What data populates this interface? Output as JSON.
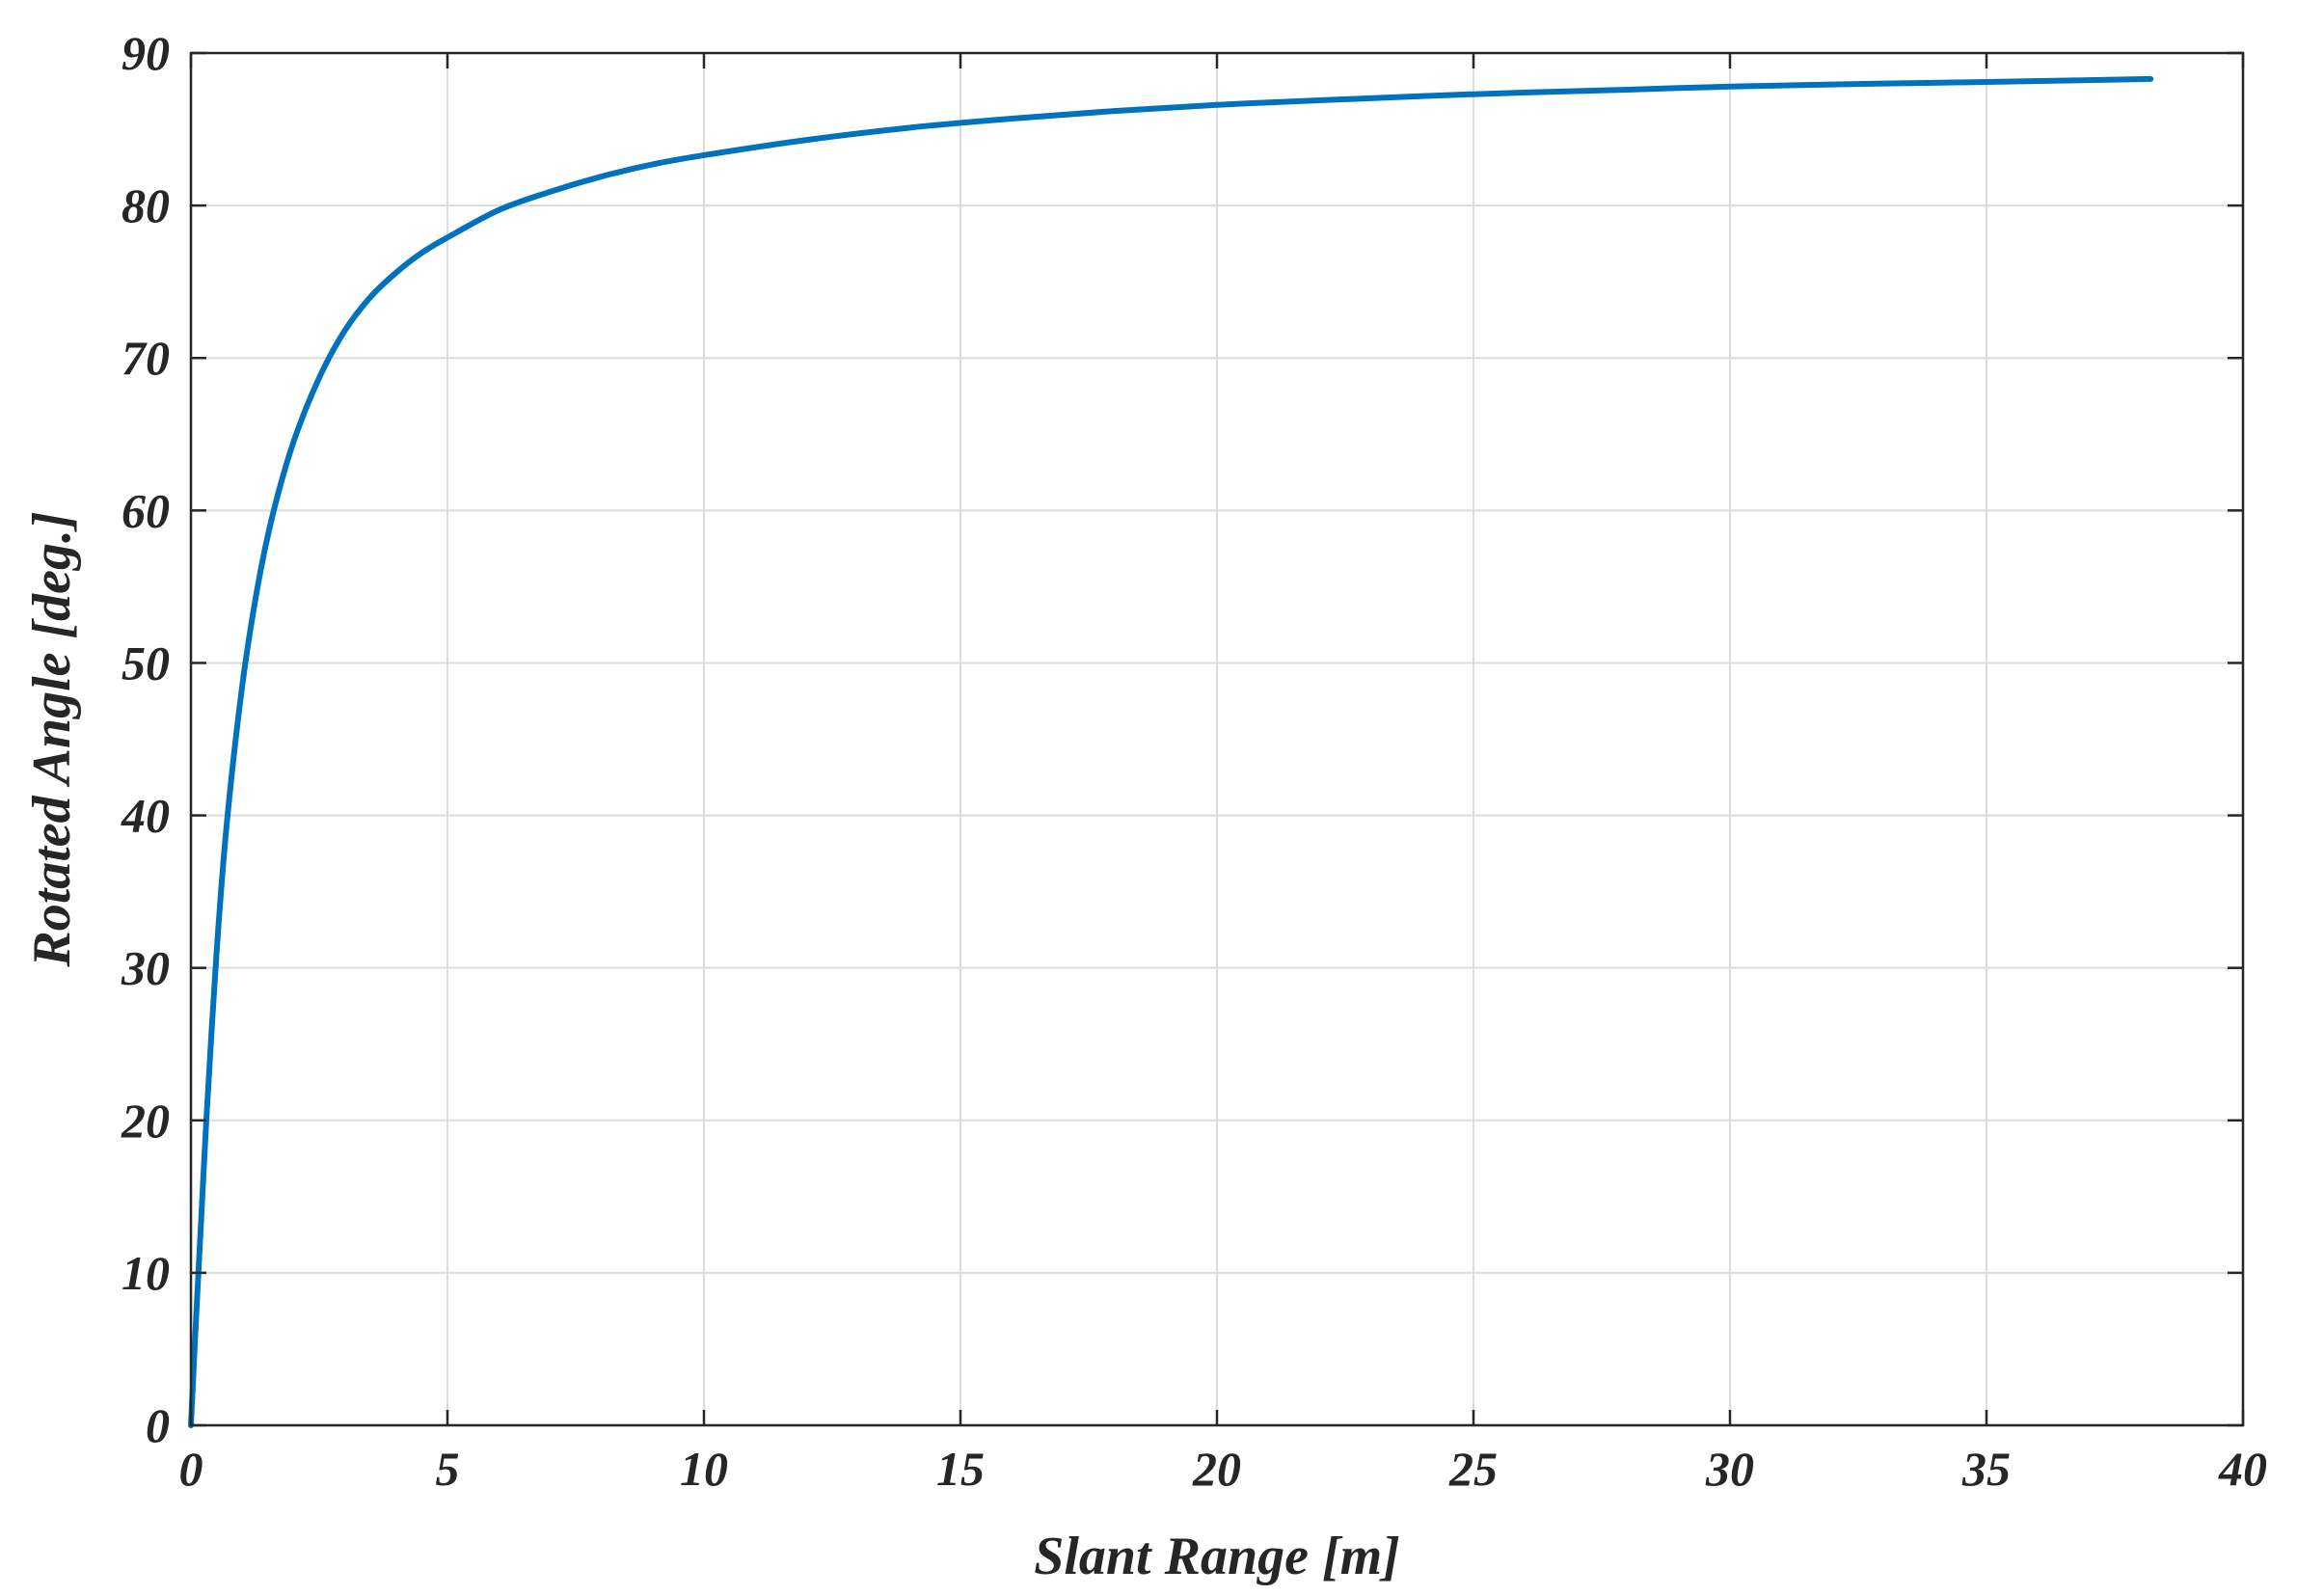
{
  "chart_data": {
    "type": "line",
    "xlabel": "Slant Range [m]",
    "ylabel": "Rotated Angle [deg.]",
    "xlim": [
      0,
      40
    ],
    "ylim": [
      0,
      90
    ],
    "xticks": [
      0,
      5,
      10,
      15,
      20,
      25,
      30,
      35,
      40
    ],
    "yticks": [
      0,
      10,
      20,
      30,
      40,
      50,
      60,
      70,
      80,
      90
    ],
    "xtick_labels": [
      "0",
      "5",
      "10",
      "15",
      "20",
      "25",
      "30",
      "35",
      "40"
    ],
    "ytick_labels": [
      "0",
      "10",
      "20",
      "30",
      "40",
      "50",
      "60",
      "70",
      "80",
      "90"
    ],
    "grid": true,
    "series": [
      {
        "color": "#0072BD",
        "x": [
          0,
          0.1,
          0.2,
          0.3,
          0.5,
          0.7,
          1.0,
          1.3,
          1.6,
          2.0,
          2.5,
          3.0,
          3.5,
          4.0,
          4.5,
          5.0,
          6.0,
          7.0,
          8.0,
          9.0,
          10.0,
          12.0,
          14.0,
          16.0,
          18.0,
          20.0,
          22.0,
          25.0,
          28.0,
          30.0,
          33.0,
          35.0,
          38.2
        ],
        "y": [
          0,
          7,
          13.5,
          20,
          31,
          39.5,
          48.5,
          55,
          59.8,
          64.5,
          68.7,
          71.8,
          74.0,
          75.6,
          76.9,
          77.9,
          79.7,
          80.9,
          81.9,
          82.7,
          83.3,
          84.3,
          85.1,
          85.7,
          86.2,
          86.6,
          86.9,
          87.3,
          87.6,
          87.8,
          88.0,
          88.1,
          88.3
        ]
      }
    ]
  }
}
